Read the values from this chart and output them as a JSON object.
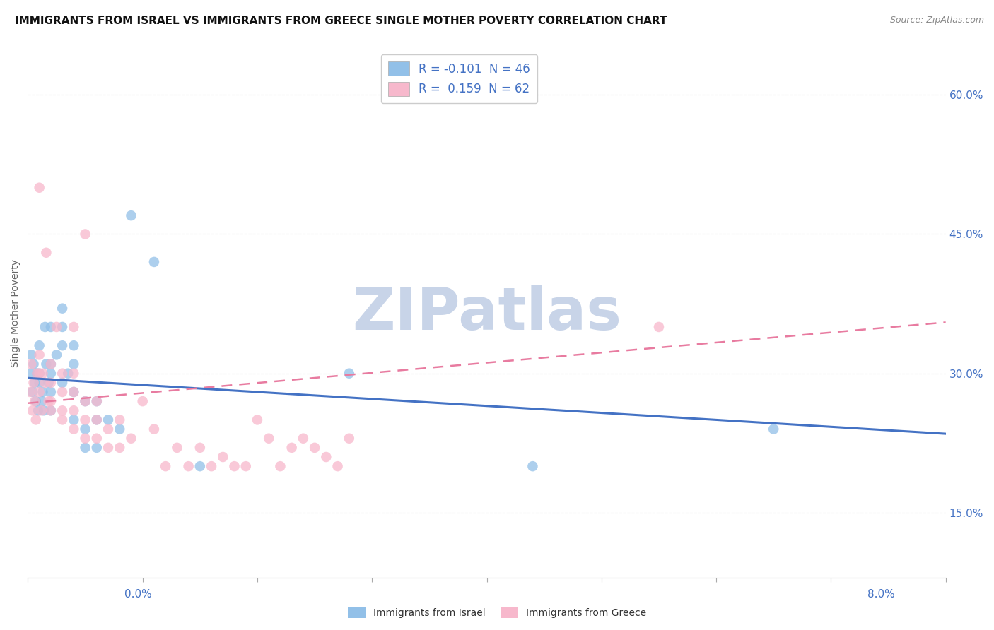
{
  "title": "IMMIGRANTS FROM ISRAEL VS IMMIGRANTS FROM GREECE SINGLE MOTHER POVERTY CORRELATION CHART",
  "source_text": "Source: ZipAtlas.com",
  "ylabel": "Single Mother Poverty",
  "xmin": 0.0,
  "xmax": 0.08,
  "ymin": 0.08,
  "ymax": 0.65,
  "yticks": [
    0.15,
    0.3,
    0.45,
    0.6
  ],
  "ytick_labels": [
    "15.0%",
    "30.0%",
    "45.0%",
    "60.0%"
  ],
  "watermark": "ZIPatlas",
  "legend_israel_r": "R = -0.101",
  "legend_israel_n": "N = 46",
  "legend_greece_r": "R =  0.159",
  "legend_greece_n": "N = 62",
  "israel_color": "#92c0e8",
  "greece_color": "#f7b8cc",
  "israel_line_color": "#4472c4",
  "greece_line_color": "#e87ba0",
  "israel_scatter_x": [
    0.0002,
    0.0003,
    0.0004,
    0.0005,
    0.0006,
    0.0007,
    0.0008,
    0.0009,
    0.001,
    0.001,
    0.001,
    0.0012,
    0.0013,
    0.0014,
    0.0015,
    0.0016,
    0.0018,
    0.002,
    0.002,
    0.002,
    0.002,
    0.002,
    0.0025,
    0.003,
    0.003,
    0.003,
    0.003,
    0.0035,
    0.004,
    0.004,
    0.004,
    0.004,
    0.005,
    0.005,
    0.005,
    0.006,
    0.006,
    0.006,
    0.007,
    0.008,
    0.009,
    0.011,
    0.015,
    0.028,
    0.044,
    0.065
  ],
  "israel_scatter_y": [
    0.3,
    0.32,
    0.28,
    0.31,
    0.29,
    0.27,
    0.3,
    0.26,
    0.33,
    0.3,
    0.29,
    0.27,
    0.28,
    0.26,
    0.35,
    0.31,
    0.29,
    0.35,
    0.31,
    0.3,
    0.28,
    0.26,
    0.32,
    0.37,
    0.35,
    0.33,
    0.29,
    0.3,
    0.33,
    0.31,
    0.28,
    0.25,
    0.27,
    0.24,
    0.22,
    0.27,
    0.25,
    0.22,
    0.25,
    0.24,
    0.47,
    0.42,
    0.2,
    0.3,
    0.2,
    0.24
  ],
  "greece_scatter_x": [
    0.0002,
    0.0003,
    0.0004,
    0.0005,
    0.0006,
    0.0007,
    0.0008,
    0.001,
    0.001,
    0.001,
    0.001,
    0.0012,
    0.0013,
    0.0015,
    0.0016,
    0.0018,
    0.002,
    0.002,
    0.002,
    0.002,
    0.0025,
    0.003,
    0.003,
    0.003,
    0.003,
    0.004,
    0.004,
    0.004,
    0.004,
    0.004,
    0.005,
    0.005,
    0.005,
    0.005,
    0.006,
    0.006,
    0.006,
    0.007,
    0.007,
    0.008,
    0.008,
    0.009,
    0.01,
    0.011,
    0.012,
    0.013,
    0.014,
    0.015,
    0.016,
    0.017,
    0.018,
    0.019,
    0.02,
    0.021,
    0.022,
    0.023,
    0.024,
    0.025,
    0.026,
    0.027,
    0.028,
    0.055
  ],
  "greece_scatter_y": [
    0.28,
    0.31,
    0.26,
    0.29,
    0.27,
    0.25,
    0.3,
    0.32,
    0.3,
    0.28,
    0.5,
    0.26,
    0.3,
    0.29,
    0.43,
    0.27,
    0.31,
    0.29,
    0.27,
    0.26,
    0.35,
    0.28,
    0.26,
    0.25,
    0.3,
    0.26,
    0.24,
    0.28,
    0.3,
    0.35,
    0.27,
    0.25,
    0.23,
    0.45,
    0.27,
    0.25,
    0.23,
    0.24,
    0.22,
    0.25,
    0.22,
    0.23,
    0.27,
    0.24,
    0.2,
    0.22,
    0.2,
    0.22,
    0.2,
    0.21,
    0.2,
    0.2,
    0.25,
    0.23,
    0.2,
    0.22,
    0.23,
    0.22,
    0.21,
    0.2,
    0.23,
    0.35
  ],
  "israel_trend_x": [
    0.0,
    0.08
  ],
  "israel_trend_y": [
    0.295,
    0.235
  ],
  "greece_trend_x": [
    0.0,
    0.08
  ],
  "greece_trend_y": [
    0.268,
    0.355
  ],
  "grid_color": "#cccccc",
  "background_color": "#ffffff",
  "title_fontsize": 11,
  "axis_label_fontsize": 10,
  "tick_fontsize": 11,
  "watermark_color": "#c8d4e8",
  "watermark_fontsize": 60
}
